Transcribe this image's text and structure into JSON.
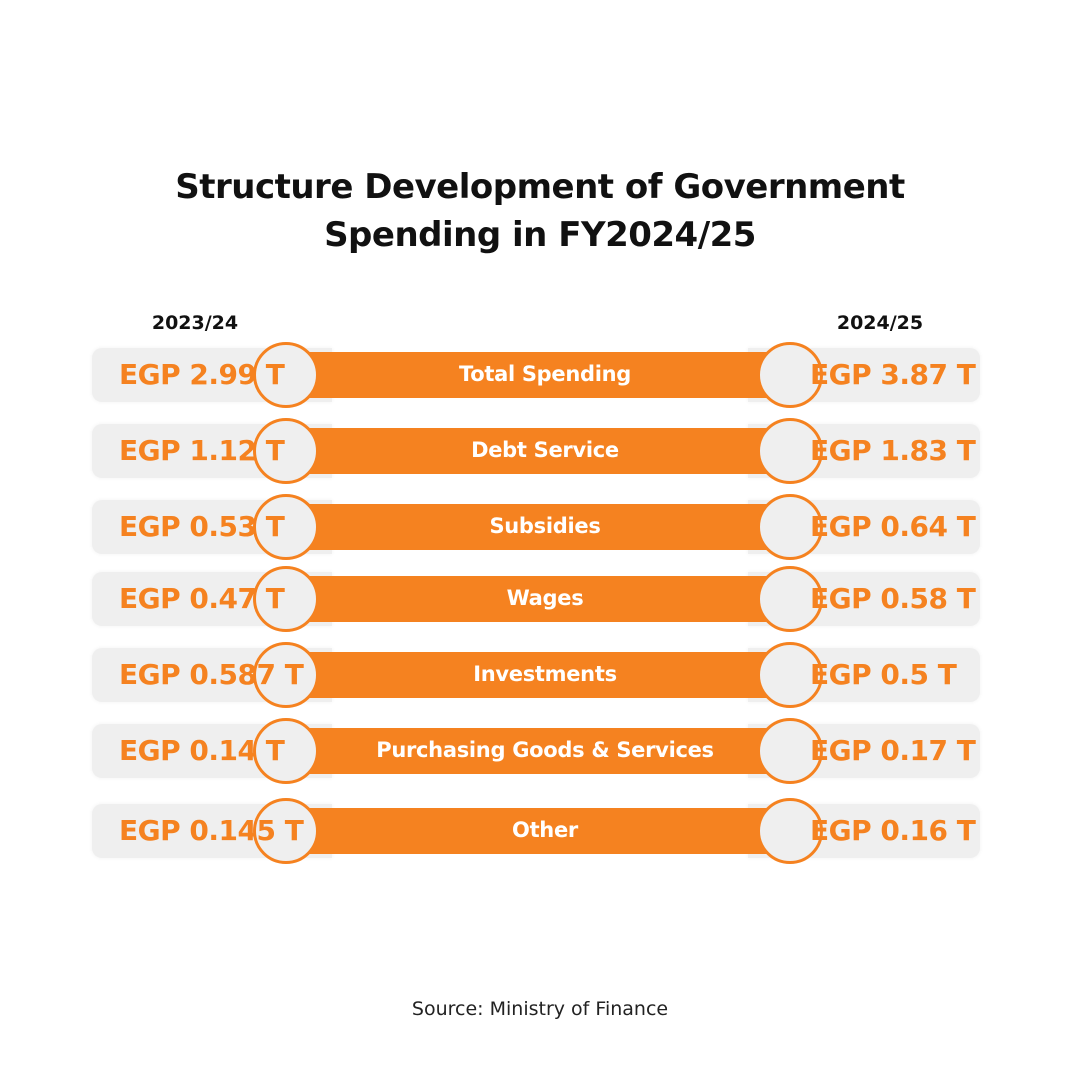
{
  "title": {
    "line1": "Structure Development of Government",
    "line2": "Spending in FY2024/25"
  },
  "colors": {
    "accent": "#f58220",
    "pill": "#efefef",
    "text": "#111111",
    "background": "#ffffff"
  },
  "chart_data": {
    "type": "table",
    "title": "Structure Development of Government Spending in FY2024/25",
    "columns": [
      "2023/24",
      "2024/25"
    ],
    "unit": "EGP trillion",
    "rows": [
      {
        "category": "Total Spending",
        "v2023": 2.99,
        "v2024": 3.87,
        "label2023": "EGP 2.99 T",
        "label2024": "EGP 3.87 T"
      },
      {
        "category": "Debt Service",
        "v2023": 1.12,
        "v2024": 1.83,
        "label2023": "EGP 1.12 T",
        "label2024": "EGP 1.83 T"
      },
      {
        "category": "Subsidies",
        "v2023": 0.53,
        "v2024": 0.64,
        "label2023": "EGP 0.53 T",
        "label2024": "EGP 0.64 T"
      },
      {
        "category": "Wages",
        "v2023": 0.47,
        "v2024": 0.58,
        "label2023": "EGP 0.47 T",
        "label2024": "EGP 0.58 T"
      },
      {
        "category": "Investments",
        "v2023": 0.587,
        "v2024": 0.5,
        "label2023": "EGP 0.587 T",
        "label2024": "EGP 0.5 T"
      },
      {
        "category": "Purchasing Goods & Services",
        "v2023": 0.14,
        "v2024": 0.17,
        "label2023": "EGP 0.14 T",
        "label2024": "EGP 0.17 T"
      },
      {
        "category": "Other",
        "v2023": 0.145,
        "v2024": 0.16,
        "label2023": "EGP 0.145 T",
        "label2024": "EGP 0.16 T"
      }
    ]
  },
  "source": "Source: Ministry of Finance"
}
